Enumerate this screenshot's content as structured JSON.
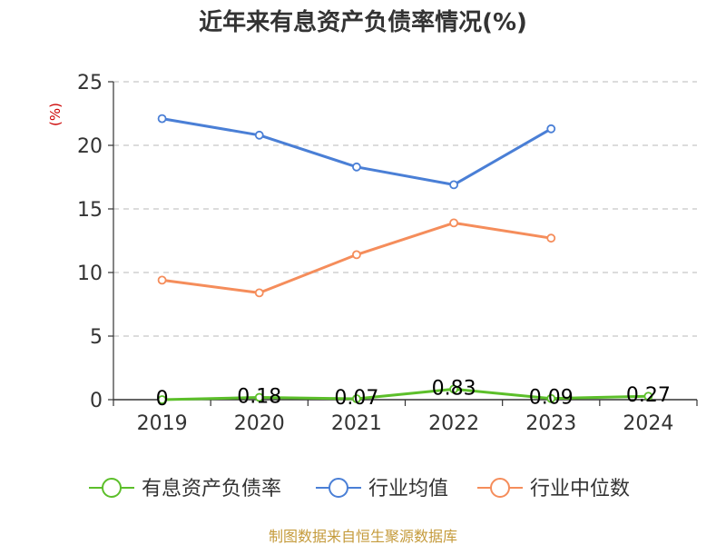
{
  "chart_data": {
    "type": "line",
    "title": "近年来有息资产负债率情况(%)",
    "ylabel": "(%)",
    "ylim": [
      0,
      25
    ],
    "yticks": [
      0,
      5,
      10,
      15,
      20,
      25
    ],
    "categories": [
      "2019",
      "2020",
      "2021",
      "2022",
      "2023",
      "2024"
    ],
    "grid": true,
    "legend_position": "bottom",
    "series": [
      {
        "name": "有息资产负债率",
        "color": "#5cbf2a",
        "values": [
          0,
          0.18,
          0.07,
          0.83,
          0.09,
          0.27
        ],
        "labels": [
          "0",
          "0.18",
          "0.07",
          "0.83",
          "0.09",
          "0.27"
        ]
      },
      {
        "name": "行业均值",
        "color": "#4a7fd6",
        "values": [
          22.1,
          20.8,
          18.3,
          16.9,
          21.3,
          null
        ]
      },
      {
        "name": "行业中位数",
        "color": "#f58d5b",
        "values": [
          9.4,
          8.4,
          11.4,
          13.9,
          12.7,
          null
        ]
      }
    ],
    "source": "制图数据来自恒生聚源数据库"
  }
}
